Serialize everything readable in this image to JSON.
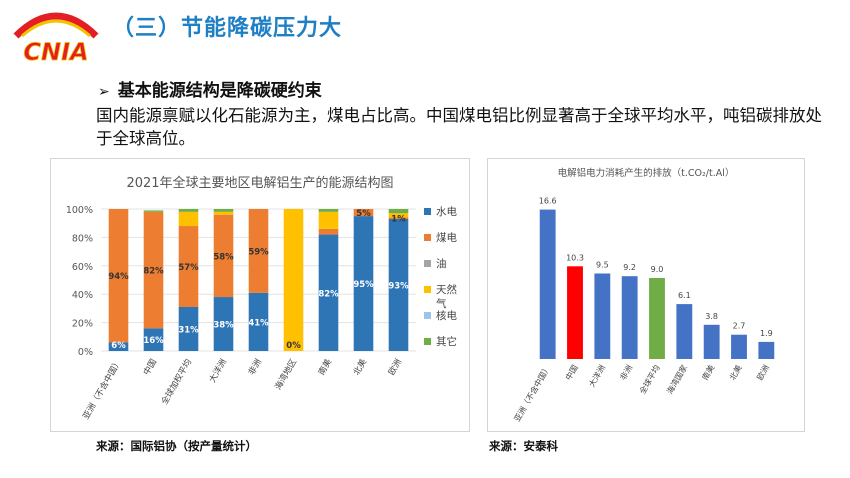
{
  "logo": {
    "text": "CNIA"
  },
  "header": {
    "title": "（三）节能降碳压力大"
  },
  "bullet": {
    "arrow": "➢",
    "text": "基本能源结构是降碳硬约束"
  },
  "body_text": "国内能源禀赋以化石能源为主，煤电占比高。中国煤电铝比例显著高于全球平均水平，吨铝碳排放处于全球高位。",
  "sources": {
    "left": "来源：国际铝协（按产量统计）",
    "right": "来源：安泰科"
  },
  "colors": {
    "hydro": "#2e75b6",
    "coal": "#ed7d31",
    "oil": "#a5a5a5",
    "gas": "#ffc000",
    "nuclear": "#9dc3e6",
    "other": "#70ad47",
    "red": "#ff0000",
    "title_blue": "#1f7fc4"
  },
  "chart_data": [
    {
      "type": "bar",
      "stacked": true,
      "title": "2021年全球主要地区电解铝生产的能源结构图",
      "categories": [
        "亚洲（不含中国）",
        "中国",
        "全球加权平均",
        "大洋洲",
        "非洲",
        "海湾地区",
        "南美",
        "北美",
        "欧洲"
      ],
      "yticks": [
        "0%",
        "20%",
        "40%",
        "60%",
        "80%",
        "100%"
      ],
      "ylim": [
        0,
        100
      ],
      "legend_position": "right",
      "series": [
        {
          "name": "水电",
          "values": [
            6,
            16,
            31,
            38,
            41,
            0,
            82,
            95,
            93
          ]
        },
        {
          "name": "煤电",
          "values": [
            94,
            82,
            57,
            58,
            59,
            0,
            4,
            5,
            1
          ]
        },
        {
          "name": "油",
          "values": [
            0,
            0,
            0,
            0,
            0,
            0,
            0,
            0,
            0
          ]
        },
        {
          "name": "天然气",
          "values": [
            0,
            0,
            10,
            2,
            0,
            100,
            12,
            0,
            3
          ]
        },
        {
          "name": "核电",
          "values": [
            0,
            0,
            0,
            0,
            0,
            0,
            0,
            0,
            0
          ]
        },
        {
          "name": "其它",
          "values": [
            0,
            1,
            2,
            2,
            0,
            0,
            2,
            0,
            3
          ]
        }
      ],
      "data_labels": [
        {
          "category": "亚洲（不含中国）",
          "series": "水电",
          "text": "6%"
        },
        {
          "category": "亚洲（不含中国）",
          "series": "煤电",
          "text": "94%"
        },
        {
          "category": "中国",
          "series": "水电",
          "text": "16%"
        },
        {
          "category": "中国",
          "series": "煤电",
          "text": "82%"
        },
        {
          "category": "全球加权平均",
          "series": "水电",
          "text": "31%"
        },
        {
          "category": "全球加权平均",
          "series": "煤电",
          "text": "57%"
        },
        {
          "category": "大洋洲",
          "series": "水电",
          "text": "38%"
        },
        {
          "category": "大洋洲",
          "series": "煤电",
          "text": "58%"
        },
        {
          "category": "非洲",
          "series": "水电",
          "text": "41%"
        },
        {
          "category": "非洲",
          "series": "煤电",
          "text": "59%"
        },
        {
          "category": "海湾地区",
          "series": "水电",
          "text": "0%"
        },
        {
          "category": "南美",
          "series": "水电",
          "text": "82%"
        },
        {
          "category": "北美",
          "series": "水电",
          "text": "95%"
        },
        {
          "category": "北美",
          "series": "煤电",
          "text": "5%"
        },
        {
          "category": "欧洲",
          "series": "水电",
          "text": "93%"
        },
        {
          "category": "欧洲",
          "series": "煤电",
          "text": "1%"
        }
      ]
    },
    {
      "type": "bar",
      "title": "电解铝电力消耗产生的排放（t.CO₂/t.Al）",
      "categories": [
        "亚洲（不含中国）",
        "中国",
        "大洋洲",
        "非洲",
        "全球平均",
        "海湾国家",
        "南美",
        "北美",
        "欧洲"
      ],
      "values": [
        16.6,
        10.3,
        9.5,
        9.2,
        9.0,
        6.1,
        3.8,
        2.7,
        1.9
      ],
      "value_labels": [
        "16.6",
        "10.3",
        "9.5",
        "9.2",
        "9.0",
        "6.1",
        "3.8",
        "2.7",
        "1.9"
      ],
      "bar_colors": [
        "#4472c4",
        "#ff0000",
        "#4472c4",
        "#4472c4",
        "#70ad47",
        "#4472c4",
        "#4472c4",
        "#4472c4",
        "#4472c4"
      ],
      "ylim": [
        0,
        18
      ]
    }
  ]
}
